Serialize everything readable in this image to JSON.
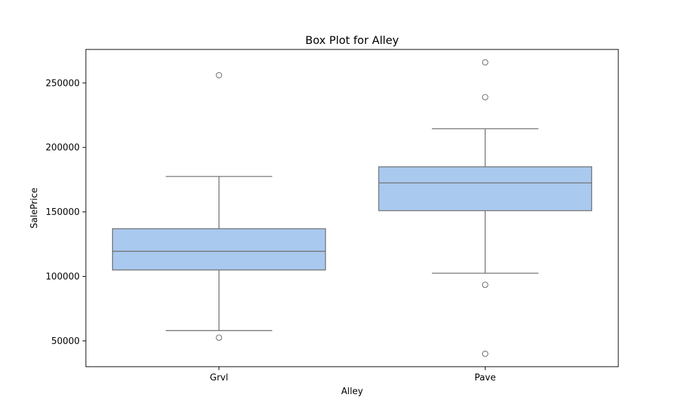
{
  "chart_data": {
    "type": "boxplot",
    "title": "Box Plot for Alley",
    "xlabel": "Alley",
    "ylabel": "SalePrice",
    "categories": [
      "Grvl",
      "Pave"
    ],
    "ylim": [
      30000,
      276000
    ],
    "yticks": [
      50000,
      100000,
      150000,
      200000,
      250000
    ],
    "ytick_labels": [
      "50000",
      "100000",
      "150000",
      "200000",
      "250000"
    ],
    "grid": false,
    "colors": {
      "box_fill": "#a9c9ef",
      "box_edge": "#707070",
      "outlier_edge": "#707070"
    },
    "boxes": [
      {
        "category": "Grvl",
        "whisker_low": 58000,
        "q1": 105000,
        "median": 119500,
        "q3": 137000,
        "whisker_high": 177500,
        "outliers": [
          52500,
          256000
        ]
      },
      {
        "category": "Pave",
        "whisker_low": 102500,
        "q1": 151000,
        "median": 172500,
        "q3": 185000,
        "whisker_high": 214500,
        "outliers": [
          93500,
          40000,
          239000,
          266000
        ]
      }
    ]
  }
}
